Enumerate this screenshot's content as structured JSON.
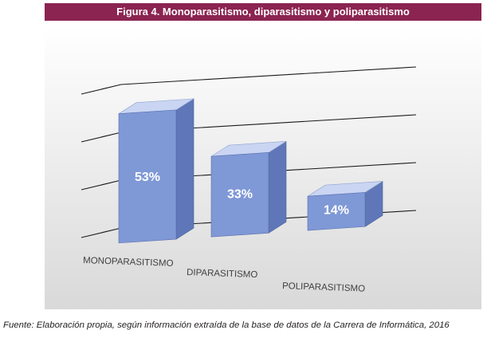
{
  "figure": {
    "title": "Figura 4. Monoparasitismo, diparasitismo y poliparasitismo",
    "source": "Fuente: Elaboración propia, según información extraída de la base de datos de la Carrera de Informática, 2016"
  },
  "colors": {
    "header_bg": "#8b2450",
    "bar_front": "#7f98d6",
    "bar_side": "#5f77b8",
    "bar_top": "#c9d5f2",
    "background_top": "#ffffff",
    "background_bottom": "#d9d9d9",
    "gridline": "#1a1a1a"
  },
  "chart_data": {
    "type": "bar",
    "style": "3d-column",
    "categories": [
      "MONOPARASITISMO",
      "DIPARASITISMO",
      "POLIPARASITISMO"
    ],
    "values": [
      53,
      33,
      14
    ],
    "data_labels": [
      "53%",
      "33%",
      "14%"
    ],
    "unit": "%",
    "ylim": [
      0,
      60
    ],
    "gridlines": true,
    "legend": false
  }
}
